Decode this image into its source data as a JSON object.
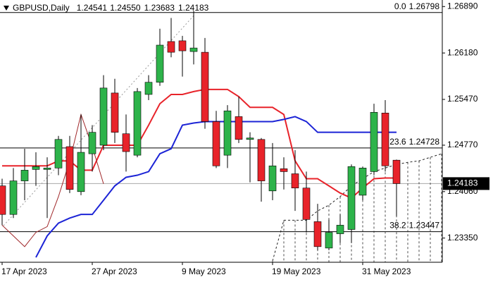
{
  "chart_data": {
    "type": "candlestick",
    "symbol": "GBPUSD,Daily",
    "header_values": [
      "1.24541",
      "1.24550",
      "1.23683",
      "1.24183"
    ],
    "categories": [
      "17 Apr 2023",
      null,
      null,
      null,
      null,
      null,
      null,
      null,
      "27 Apr 2023",
      null,
      null,
      null,
      null,
      null,
      null,
      null,
      "9 May 2023",
      null,
      null,
      null,
      null,
      null,
      null,
      null,
      "19 May 2023",
      null,
      null,
      null,
      null,
      null,
      null,
      null,
      "31 May 2023",
      null,
      null,
      null,
      null,
      null,
      null,
      null
    ],
    "open": [
      1.24148,
      1.23711,
      1.24224,
      1.24399,
      1.24399,
      1.24421,
      1.24748,
      1.2406,
      1.24639,
      1.2477,
      1.25568,
      1.24945,
      1.24617,
      1.25546,
      1.25732,
      1.26355,
      1.26366,
      1.26202,
      1.26191,
      1.25131,
      1.24617,
      1.25207,
      1.24858,
      1.24858,
      1.24071,
      1.2441,
      1.24333,
      1.24115,
      1.23601,
      1.23197,
      1.23416,
      1.23481,
      1.24005,
      1.24366,
      1.25262,
      1.24541,
      null,
      null,
      null,
      null
    ],
    "high": [
      1.24257,
      1.24421,
      1.24716,
      1.24661,
      1.24585,
      1.24912,
      1.24912,
      1.2524,
      1.25076,
      1.25841,
      1.25786,
      1.2524,
      1.25644,
      1.25841,
      1.26551,
      1.26715,
      1.26442,
      1.26824,
      1.26409,
      1.25295,
      1.25382,
      1.25513,
      1.24967,
      1.2488,
      1.24803,
      1.24585,
      1.24694,
      1.24366,
      1.23874,
      1.23634,
      1.23711,
      1.24475,
      1.24443,
      1.25404,
      1.25459,
      1.2455,
      null,
      null,
      null,
      null
    ],
    "low": [
      1.23547,
      1.23656,
      1.23929,
      1.24148,
      1.23656,
      1.24311,
      1.24038,
      1.24005,
      1.24366,
      1.24694,
      1.24803,
      1.24366,
      1.24585,
      1.25459,
      1.25677,
      1.26114,
      1.25819,
      1.26005,
      1.25022,
      1.24421,
      1.24421,
      1.24803,
      1.24202,
      1.23907,
      1.23929,
      1.24093,
      1.23765,
      1.23437,
      1.23164,
      1.23164,
      1.23274,
      1.23274,
      1.23929,
      1.24311,
      1.24366,
      1.23683,
      null,
      null,
      null,
      null
    ],
    "close": [
      1.23711,
      1.24224,
      1.24388,
      1.24443,
      1.24421,
      1.24858,
      1.24093,
      1.24661,
      1.24967,
      1.25644,
      1.24967,
      1.24672,
      1.2559,
      1.25732,
      1.263,
      1.26191,
      1.26213,
      1.26256,
      1.25131,
      1.24454,
      1.25295,
      1.24858,
      1.2488,
      1.24224,
      1.24454,
      1.24366,
      1.24115,
      1.23634,
      1.23219,
      1.23437,
      1.23547,
      1.24443,
      1.24421,
      1.25273,
      1.24454,
      1.24183,
      null,
      null,
      null,
      null
    ],
    "up_color": "#2db34a",
    "down_color": "#e8232a",
    "indicator_lines": [
      {
        "color": "#e8232a",
        "width": 2,
        "values": [
          1.24454,
          1.24454,
          1.24454,
          1.24454,
          1.24454,
          1.2453,
          1.2453,
          1.24388,
          1.24388,
          1.2477,
          1.2477,
          1.2477,
          1.2477,
          1.25076,
          1.25404,
          1.25546,
          1.25546,
          1.2559,
          1.25623,
          1.25623,
          1.25623,
          1.25513,
          1.25349,
          1.25349,
          1.25349,
          1.2524,
          1.2453,
          1.24257,
          1.24257,
          1.24148,
          1.24038,
          1.23962,
          1.24115,
          1.24257,
          1.24268,
          1.24268,
          null,
          null,
          null,
          null
        ]
      },
      {
        "color": "#1c24d6",
        "width": 2,
        "values": [
          null,
          null,
          null,
          1.23055,
          1.23383,
          1.23579,
          1.23656,
          1.23711,
          1.23711,
          1.23929,
          1.24148,
          1.24279,
          1.24311,
          1.24366,
          1.24639,
          1.24716,
          1.25076,
          1.25109,
          1.25131,
          1.25131,
          1.25131,
          1.25131,
          1.25131,
          1.25131,
          1.25131,
          1.25164,
          1.25207,
          1.25131,
          1.24967,
          1.24967,
          1.24967,
          1.24967,
          1.24967,
          1.24967,
          1.24967,
          1.24967,
          null,
          null,
          null,
          null
        ]
      },
      {
        "color": "#a0282a",
        "width": 1,
        "values": [
          1.23547,
          1.23383,
          1.23219,
          1.23437,
          1.23525,
          1.23984,
          1.2453,
          1.2524,
          1.24748,
          1.2418,
          null,
          null,
          null,
          null,
          null,
          null,
          null,
          null,
          null,
          null,
          null,
          null,
          null,
          null,
          null,
          null,
          null,
          null,
          null,
          null,
          null,
          null,
          null,
          null,
          null,
          null,
          null,
          null,
          null,
          null
        ]
      }
    ],
    "cloud": {
      "color": "#222222",
      "values": [
        null,
        null,
        null,
        null,
        null,
        null,
        null,
        null,
        null,
        null,
        null,
        null,
        null,
        null,
        null,
        null,
        null,
        null,
        null,
        null,
        null,
        null,
        null,
        null,
        1.23,
        1.23623,
        1.23623,
        1.23623,
        1.23765,
        1.23853,
        1.23984,
        1.24148,
        1.24257,
        1.24366,
        1.24421,
        1.24475,
        1.24508,
        1.2453,
        1.24585,
        1.24639
      ]
    },
    "fib_levels": [
      {
        "level": "0.0",
        "price": 1.26798
      },
      {
        "level": "23.6",
        "price": 1.24728
      },
      {
        "level": "38.2",
        "price": 1.23447
      }
    ],
    "current_price": 1.24183,
    "ylim": [
      1.2298,
      1.2699
    ],
    "yticks": [
      {
        "value": 1.2689,
        "label": "1.26890"
      },
      {
        "value": 1.2618,
        "label": "1.26180"
      },
      {
        "value": 1.2547,
        "label": "1.25470"
      },
      {
        "value": 1.2477,
        "label": "1.24770"
      },
      {
        "value": 1.2406,
        "label": "1.24060"
      },
      {
        "value": 1.2335,
        "label": "1.23350"
      }
    ]
  }
}
